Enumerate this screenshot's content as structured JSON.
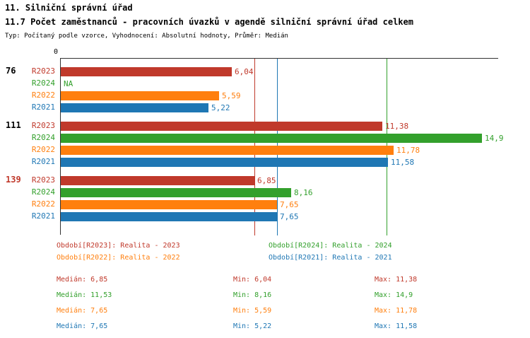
{
  "header": {
    "title": "11. Silniční správní úřad",
    "subtitle": "11.7 Počet zaměstnanců - pracovních úvazků v agendě silniční správní úřad celkem",
    "meta": "Typ: Počítaný podle vzorce, Vyhodnocení: Absolutní hodnoty, Průměr: Medián"
  },
  "chart_data": {
    "type": "bar",
    "orientation": "horizontal",
    "xlim": [
      0,
      15.5
    ],
    "x_origin_label": "0",
    "series": [
      {
        "name": "R2023",
        "color": "#c0392b",
        "median": 6.85
      },
      {
        "name": "R2024",
        "color": "#33a02c",
        "median": 11.53
      },
      {
        "name": "R2022",
        "color": "#ff7f0e",
        "median": 7.65
      },
      {
        "name": "R2021",
        "color": "#1f77b4",
        "median": 7.65
      }
    ],
    "groups": [
      {
        "label": "76",
        "label_color": "#000000",
        "values": [
          {
            "series": "R2023",
            "value": 6.04,
            "display": "6,04"
          },
          {
            "series": "R2024",
            "value": null,
            "display": "NA"
          },
          {
            "series": "R2022",
            "value": 5.59,
            "display": "5,59"
          },
          {
            "series": "R2021",
            "value": 5.22,
            "display": "5,22"
          }
        ]
      },
      {
        "label": "111",
        "label_color": "#000000",
        "values": [
          {
            "series": "R2023",
            "value": 11.38,
            "display": "11,38"
          },
          {
            "series": "R2024",
            "value": 14.9,
            "display": "14,9"
          },
          {
            "series": "R2022",
            "value": 11.78,
            "display": "11,78"
          },
          {
            "series": "R2021",
            "value": 11.58,
            "display": "11,58"
          }
        ]
      },
      {
        "label": "139",
        "label_color": "#c0392b",
        "values": [
          {
            "series": "R2023",
            "value": 6.85,
            "display": "6,85"
          },
          {
            "series": "R2024",
            "value": 8.16,
            "display": "8,16"
          },
          {
            "series": "R2022",
            "value": 7.65,
            "display": "7,65"
          },
          {
            "series": "R2021",
            "value": 7.65,
            "display": "7,65"
          }
        ]
      }
    ],
    "median_lines": [
      {
        "series": "R2023",
        "value": 6.85,
        "color": "#c0392b"
      },
      {
        "series": "R2024",
        "value": 11.53,
        "color": "#33a02c"
      },
      {
        "series": "R2022",
        "value": 7.65,
        "color": "#ff7f0e"
      },
      {
        "series": "R2021",
        "value": 7.65,
        "color": "#1f77b4"
      }
    ]
  },
  "legend": {
    "items": [
      {
        "label": "Období[R2023]: Realita - 2023",
        "color": "#c0392b"
      },
      {
        "label": "Období[R2024]: Realita - 2024",
        "color": "#33a02c"
      },
      {
        "label": "Období[R2022]: Realita - 2022",
        "color": "#ff7f0e"
      },
      {
        "label": "Období[R2021]: Realita - 2021",
        "color": "#1f77b4"
      }
    ]
  },
  "stats": {
    "rows": [
      {
        "median": "Medián: 6,85",
        "min": "Min: 6,04",
        "max": "Max: 11,38",
        "color": "#c0392b"
      },
      {
        "median": "Medián: 11,53",
        "min": "Min: 8,16",
        "max": "Max: 14,9",
        "color": "#33a02c"
      },
      {
        "median": "Medián: 7,65",
        "min": "Min: 5,59",
        "max": "Max: 11,78",
        "color": "#ff7f0e"
      },
      {
        "median": "Medián: 7,65",
        "min": "Min: 5,22",
        "max": "Max: 11,58",
        "color": "#1f77b4"
      }
    ]
  }
}
